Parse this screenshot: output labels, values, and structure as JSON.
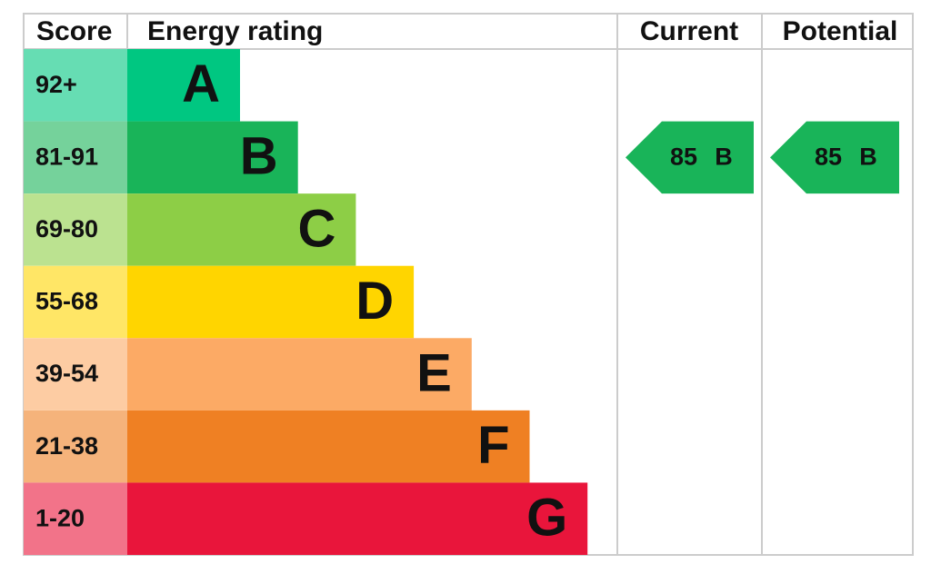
{
  "header": {
    "score": "Score",
    "energy_rating": "Energy rating",
    "current": "Current",
    "potential": "Potential"
  },
  "bands": [
    {
      "score": "92+",
      "rating": "A",
      "color": "#00c781"
    },
    {
      "score": "81-91",
      "rating": "B",
      "color": "#19b459"
    },
    {
      "score": "69-80",
      "rating": "C",
      "color": "#8dce46"
    },
    {
      "score": "55-68",
      "rating": "D",
      "color": "#ffd500"
    },
    {
      "score": "39-54",
      "rating": "E",
      "color": "#fcaa65"
    },
    {
      "score": "21-38",
      "rating": "F",
      "color": "#ef8023"
    },
    {
      "score": "1-20",
      "rating": "G",
      "color": "#e9153b"
    }
  ],
  "current": {
    "score": 85,
    "rating": "B"
  },
  "potential": {
    "score": 85,
    "rating": "B"
  }
}
